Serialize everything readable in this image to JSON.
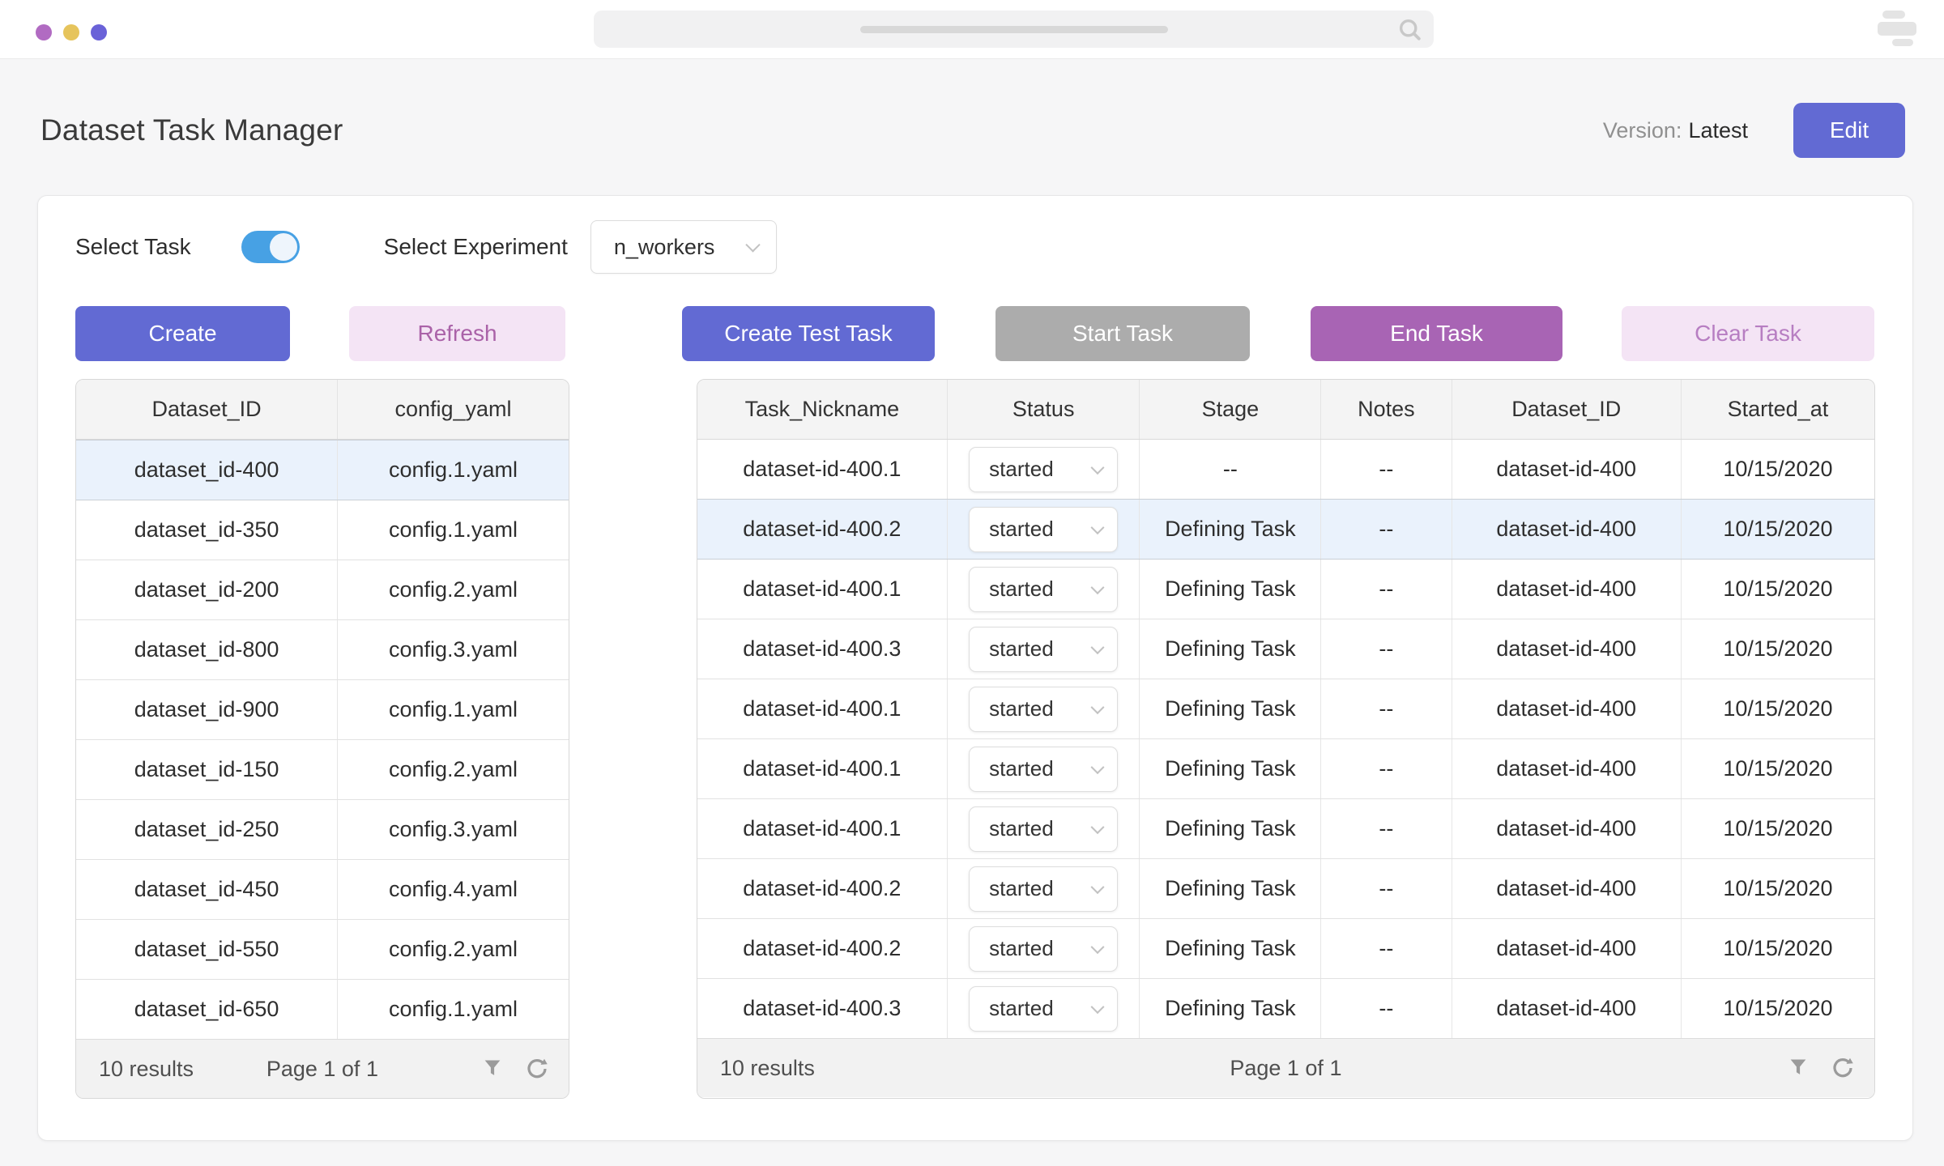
{
  "window": {
    "traffic_dots": [
      "purple",
      "yellow",
      "indigo"
    ],
    "search_placeholder": "",
    "menu_icon": "stacked-bars"
  },
  "header": {
    "title": "Dataset Task Manager",
    "version_label": "Version:",
    "version_value": "Latest",
    "edit_button": "Edit"
  },
  "controls": {
    "select_task_label": "Select Task",
    "select_task_on": true,
    "select_experiment_label": "Select Experiment",
    "experiment_value": "n_workers"
  },
  "actions": {
    "create": "Create",
    "refresh": "Refresh",
    "create_test_task": "Create Test Task",
    "start_task": "Start Task",
    "end_task": "End Task",
    "clear_task": "Clear Task"
  },
  "left_table": {
    "columns": [
      "Dataset_ID",
      "config_yaml"
    ],
    "highlight_index": 0,
    "rows": [
      {
        "dataset_id": "dataset_id-400",
        "config_yaml": "config.1.yaml"
      },
      {
        "dataset_id": "dataset_id-350",
        "config_yaml": "config.1.yaml"
      },
      {
        "dataset_id": "dataset_id-200",
        "config_yaml": "config.2.yaml"
      },
      {
        "dataset_id": "dataset_id-800",
        "config_yaml": "config.3.yaml"
      },
      {
        "dataset_id": "dataset_id-900",
        "config_yaml": "config.1.yaml"
      },
      {
        "dataset_id": "dataset_id-150",
        "config_yaml": "config.2.yaml"
      },
      {
        "dataset_id": "dataset_id-250",
        "config_yaml": "config.3.yaml"
      },
      {
        "dataset_id": "dataset_id-450",
        "config_yaml": "config.4.yaml"
      },
      {
        "dataset_id": "dataset_id-550",
        "config_yaml": "config.2.yaml"
      },
      {
        "dataset_id": "dataset_id-650",
        "config_yaml": "config.1.yaml"
      }
    ],
    "footer": {
      "results": "10 results",
      "page": "Page 1 of 1"
    }
  },
  "right_table": {
    "columns": [
      "Task_Nickname",
      "Status",
      "Stage",
      "Notes",
      "Dataset_ID",
      "Started_at"
    ],
    "highlight_index": 1,
    "rows": [
      {
        "task_nickname": "dataset-id-400.1",
        "status": "started",
        "stage": "--",
        "notes": "--",
        "dataset_id": "dataset-id-400",
        "started_at": "10/15/2020"
      },
      {
        "task_nickname": "dataset-id-400.2",
        "status": "started",
        "stage": "Defining Task",
        "notes": "--",
        "dataset_id": "dataset-id-400",
        "started_at": "10/15/2020"
      },
      {
        "task_nickname": "dataset-id-400.1",
        "status": "started",
        "stage": "Defining Task",
        "notes": "--",
        "dataset_id": "dataset-id-400",
        "started_at": "10/15/2020"
      },
      {
        "task_nickname": "dataset-id-400.3",
        "status": "started",
        "stage": "Defining Task",
        "notes": "--",
        "dataset_id": "dataset-id-400",
        "started_at": "10/15/2020"
      },
      {
        "task_nickname": "dataset-id-400.1",
        "status": "started",
        "stage": "Defining Task",
        "notes": "--",
        "dataset_id": "dataset-id-400",
        "started_at": "10/15/2020"
      },
      {
        "task_nickname": "dataset-id-400.1",
        "status": "started",
        "stage": "Defining Task",
        "notes": "--",
        "dataset_id": "dataset-id-400",
        "started_at": "10/15/2020"
      },
      {
        "task_nickname": "dataset-id-400.1",
        "status": "started",
        "stage": "Defining Task",
        "notes": "--",
        "dataset_id": "dataset-id-400",
        "started_at": "10/15/2020"
      },
      {
        "task_nickname": "dataset-id-400.2",
        "status": "started",
        "stage": "Defining Task",
        "notes": "--",
        "dataset_id": "dataset-id-400",
        "started_at": "10/15/2020"
      },
      {
        "task_nickname": "dataset-id-400.2",
        "status": "started",
        "stage": "Defining Task",
        "notes": "--",
        "dataset_id": "dataset-id-400",
        "started_at": "10/15/2020"
      },
      {
        "task_nickname": "dataset-id-400.3",
        "status": "started",
        "stage": "Defining Task",
        "notes": "--",
        "dataset_id": "dataset-id-400",
        "started_at": "10/15/2020"
      }
    ],
    "footer": {
      "results": "10 results",
      "page": "Page 1 of 1"
    }
  },
  "colors": {
    "primary_indigo": "#626ad3",
    "disabled_gray": "#acacac",
    "end_purple": "#a864b4",
    "soft_pink": "#f4e4f5",
    "refresh_text": "#aa62a8",
    "clear_text": "#b77ec2",
    "toggle_blue": "#47a1e4",
    "row_highlight": "#eaf2fc",
    "dot_purple": "#b16bc2",
    "dot_yellow": "#e6c45c",
    "dot_indigo": "#6a62d8"
  }
}
